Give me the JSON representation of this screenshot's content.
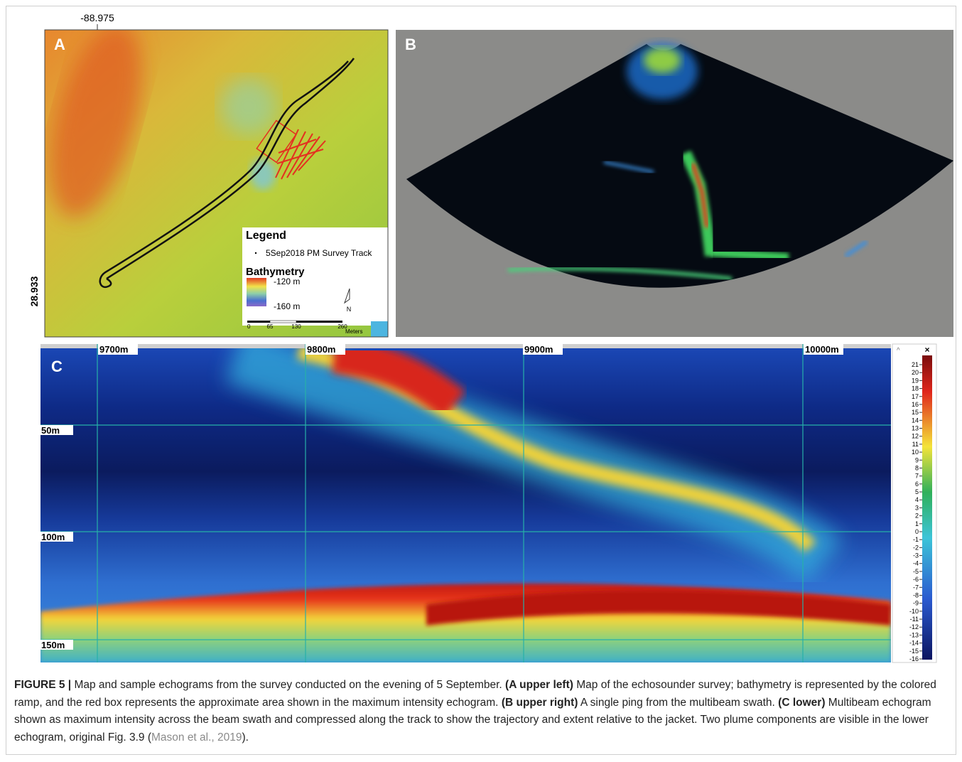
{
  "panel_a": {
    "label": "A",
    "lon_label": "-88.975",
    "lat_label": "28.933",
    "legend": {
      "title": "Legend",
      "track": "5Sep2018 PM Survey Track",
      "bathymetry": "Bathymetry",
      "max_depth": "-120 m",
      "min_depth": "-160 m",
      "scale_labels": [
        "0",
        "65",
        "130",
        "260"
      ],
      "scale_unit": "Meters",
      "north": "N"
    }
  },
  "panel_b": {
    "label": "B"
  },
  "panel_c": {
    "label": "C",
    "distance_labels": [
      "9700m",
      "9800m",
      "9900m",
      "10000m"
    ],
    "depth_labels": [
      "50m",
      "100m",
      "150m"
    ],
    "colorbar_labels": [
      21,
      20,
      19,
      18,
      17,
      16,
      15,
      14,
      13,
      12,
      11,
      10,
      9,
      8,
      7,
      6,
      5,
      4,
      3,
      2,
      1,
      0,
      -1,
      -2,
      -3,
      -4,
      -5,
      -6,
      -7,
      -8,
      -9,
      -10,
      -11,
      -12,
      -13,
      -14,
      -15,
      -16
    ],
    "close": "×"
  },
  "caption": {
    "figure": "FIGURE 5 |",
    "parts": [
      "Map and sample echograms from the survey conducted on the evening of 5 September.",
      "(A upper left)",
      "Map of the echosounder survey; bathymetry is represented by the colored ramp, and the red box represents the approximate area shown in the maximum intensity echogram.",
      "(B upper right)",
      "A single ping from the multibeam swath.",
      "(C lower)",
      "Multibeam echogram shown as maximum intensity across the beam swath and compressed along the track to show the trajectory and extent relative to the jacket. Two plume components are visible in the lower echogram, original Fig. 3.9 (",
      "Mason et al., 2019",
      "). "
    ]
  }
}
